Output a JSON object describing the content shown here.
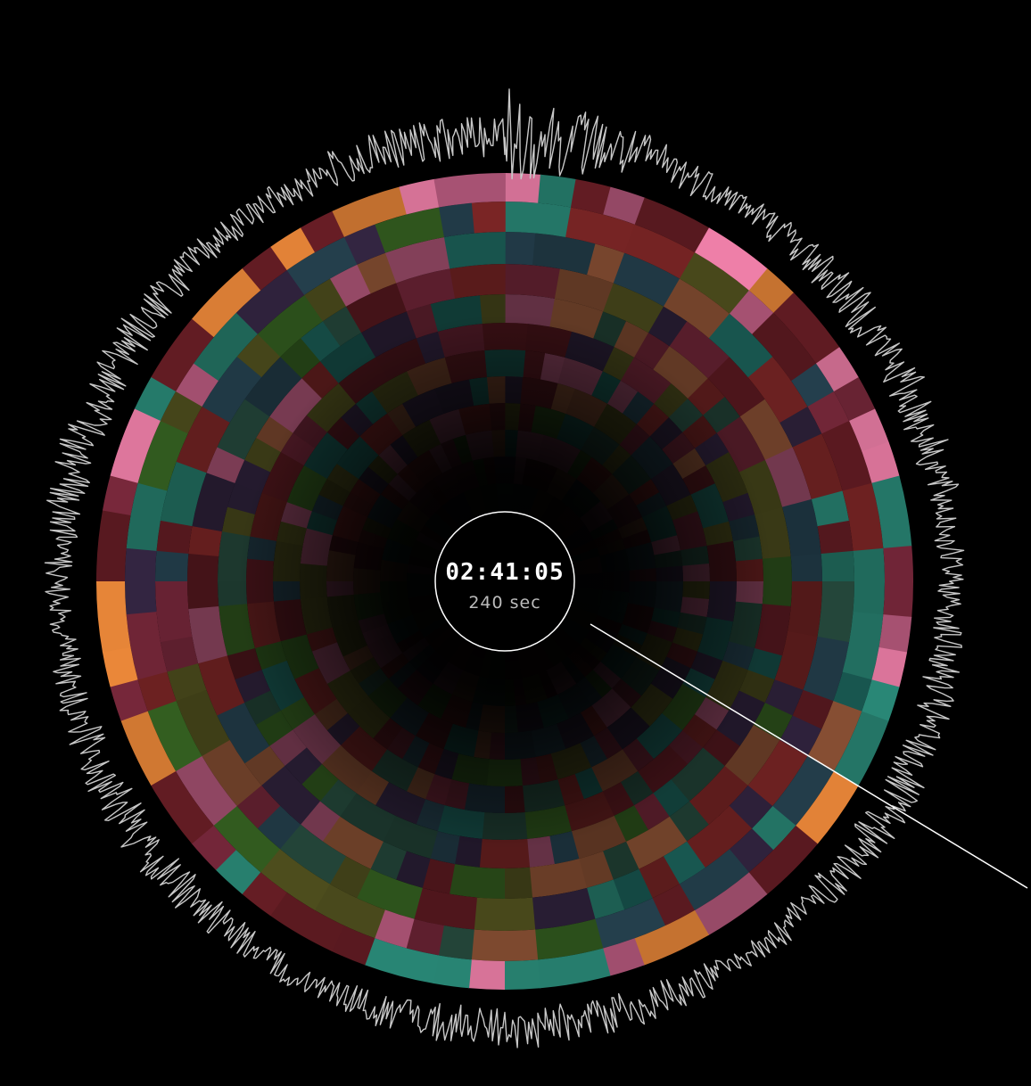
{
  "clock": {
    "time": "02:41:05",
    "duration": "240 sec"
  },
  "palette": {
    "background": "#000000",
    "waveform": "#c8c8c8",
    "clock_ring": "#ffffff",
    "playhead": "#ffffff",
    "clock_text": "#ffffff",
    "clock_subtext": "#bbbbbb",
    "cells": [
      "#ee7fa8",
      "#ef8a3a",
      "#2a8a78",
      "#7e2a3e",
      "#b85a7e",
      "#6a1e26",
      "#2e5a4a",
      "#5a5a22",
      "#3a6a24",
      "#8a2a2a",
      "#2a4a5a",
      "#3a2a4a",
      "#1e6a62",
      "#9a5a3a"
    ]
  }
}
